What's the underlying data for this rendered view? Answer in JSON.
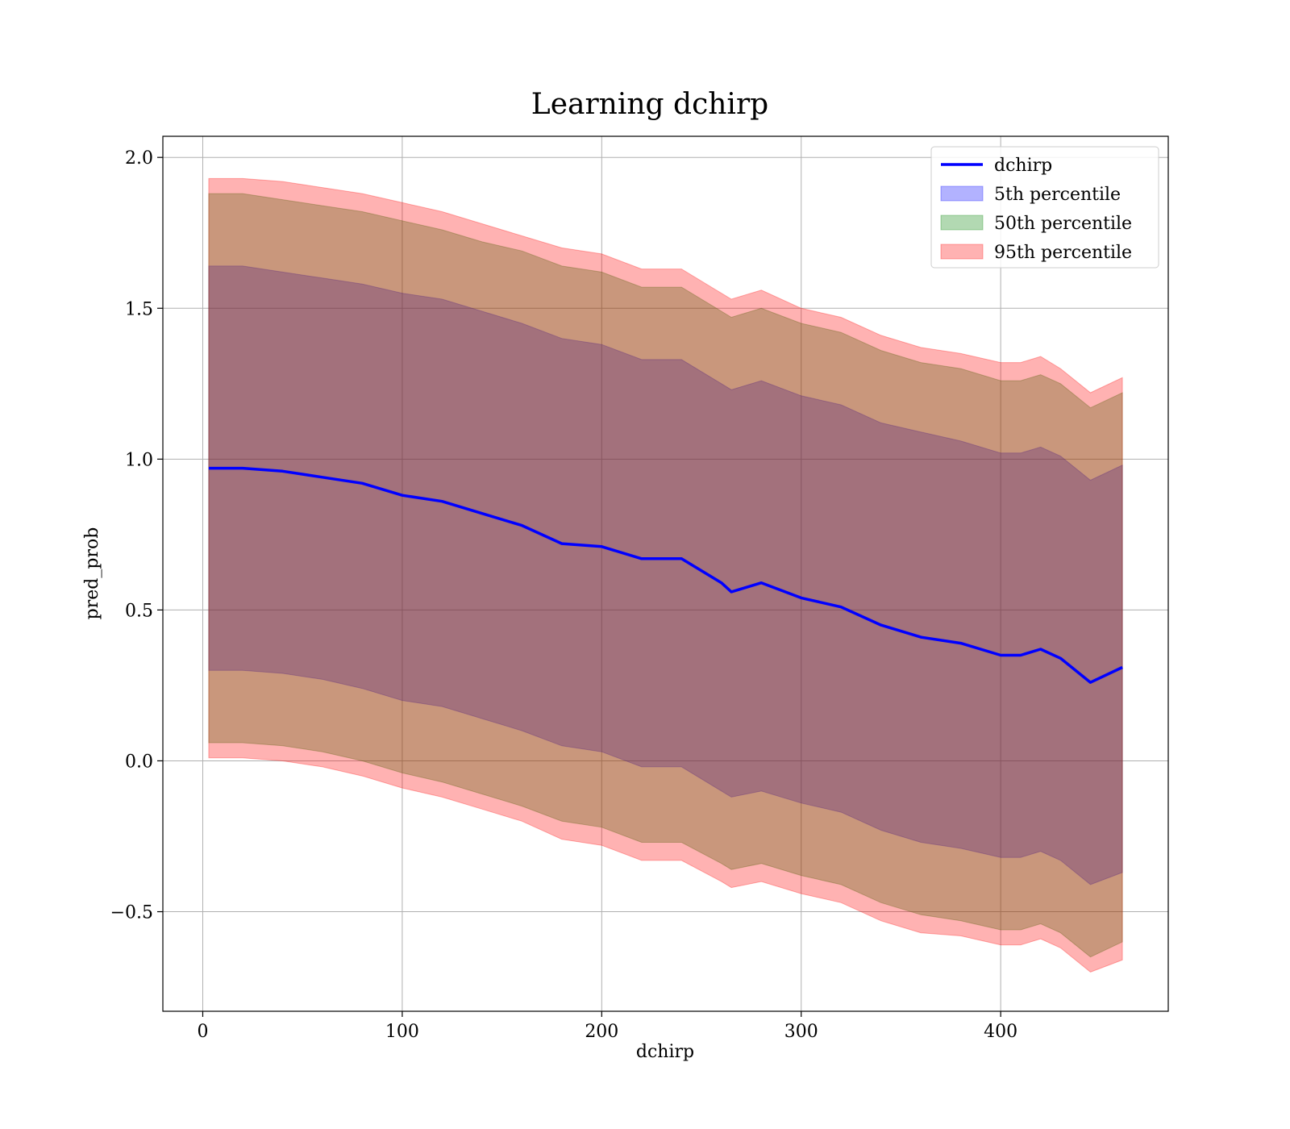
{
  "chart_data": {
    "type": "line",
    "title": "Learning dchirp",
    "xlabel": "dchirp",
    "ylabel": "pred_prob",
    "xlim": [
      -20,
      484
    ],
    "ylim": [
      -0.83,
      2.07
    ],
    "xticks": [
      0,
      100,
      200,
      300,
      400
    ],
    "xtick_labels": [
      "0",
      "100",
      "200",
      "300",
      "400"
    ],
    "yticks": [
      -0.5,
      0.0,
      0.5,
      1.0,
      1.5,
      2.0
    ],
    "ytick_labels": [
      "−0.5",
      "0.0",
      "0.5",
      "1.0",
      "1.5",
      "2.0"
    ],
    "grid": true,
    "legend_position": "top-right",
    "colors": {
      "line": "#0000ff",
      "band_5th": "#0000ff",
      "band_50th": "#008000",
      "band_95th": "#ff0000"
    },
    "legend": [
      {
        "label": "dchirp",
        "kind": "line",
        "color": "#0000ff"
      },
      {
        "label": "5th percentile",
        "kind": "band",
        "color": "#0000ff"
      },
      {
        "label": "50th percentile",
        "kind": "band",
        "color": "#008000"
      },
      {
        "label": "95th percentile",
        "kind": "band",
        "color": "#ff0000"
      }
    ],
    "x": [
      3,
      20,
      40,
      60,
      80,
      100,
      120,
      140,
      160,
      180,
      200,
      220,
      240,
      260,
      265,
      280,
      300,
      320,
      340,
      360,
      380,
      400,
      410,
      420,
      430,
      445,
      461
    ],
    "series": [
      {
        "name": "dchirp",
        "values": [
          0.97,
          0.97,
          0.96,
          0.94,
          0.92,
          0.88,
          0.86,
          0.82,
          0.78,
          0.72,
          0.71,
          0.67,
          0.67,
          0.59,
          0.56,
          0.59,
          0.54,
          0.51,
          0.45,
          0.41,
          0.39,
          0.35,
          0.35,
          0.37,
          0.34,
          0.26,
          0.31
        ]
      },
      {
        "name": "5th percentile",
        "lower": [
          0.3,
          0.3,
          0.29,
          0.27,
          0.24,
          0.2,
          0.18,
          0.14,
          0.1,
          0.05,
          0.03,
          -0.02,
          -0.02,
          -0.1,
          -0.12,
          -0.1,
          -0.14,
          -0.17,
          -0.23,
          -0.27,
          -0.29,
          -0.32,
          -0.32,
          -0.3,
          -0.33,
          -0.41,
          -0.37
        ],
        "upper": [
          1.64,
          1.64,
          1.62,
          1.6,
          1.58,
          1.55,
          1.53,
          1.49,
          1.45,
          1.4,
          1.38,
          1.33,
          1.33,
          1.25,
          1.23,
          1.26,
          1.21,
          1.18,
          1.12,
          1.09,
          1.06,
          1.02,
          1.02,
          1.04,
          1.01,
          0.93,
          0.98
        ]
      },
      {
        "name": "50th percentile",
        "lower": [
          0.06,
          0.06,
          0.05,
          0.03,
          0.0,
          -0.04,
          -0.07,
          -0.11,
          -0.15,
          -0.2,
          -0.22,
          -0.27,
          -0.27,
          -0.34,
          -0.36,
          -0.34,
          -0.38,
          -0.41,
          -0.47,
          -0.51,
          -0.53,
          -0.56,
          -0.56,
          -0.54,
          -0.57,
          -0.65,
          -0.6
        ],
        "upper": [
          1.88,
          1.88,
          1.86,
          1.84,
          1.82,
          1.79,
          1.76,
          1.72,
          1.69,
          1.64,
          1.62,
          1.57,
          1.57,
          1.49,
          1.47,
          1.5,
          1.45,
          1.42,
          1.36,
          1.32,
          1.3,
          1.26,
          1.26,
          1.28,
          1.25,
          1.17,
          1.22
        ]
      },
      {
        "name": "95th percentile",
        "lower": [
          0.01,
          0.01,
          0.0,
          -0.02,
          -0.05,
          -0.09,
          -0.12,
          -0.16,
          -0.2,
          -0.26,
          -0.28,
          -0.33,
          -0.33,
          -0.4,
          -0.42,
          -0.4,
          -0.44,
          -0.47,
          -0.53,
          -0.57,
          -0.58,
          -0.61,
          -0.61,
          -0.59,
          -0.62,
          -0.7,
          -0.66
        ],
        "upper": [
          1.93,
          1.93,
          1.92,
          1.9,
          1.88,
          1.85,
          1.82,
          1.78,
          1.74,
          1.7,
          1.68,
          1.63,
          1.63,
          1.55,
          1.53,
          1.56,
          1.5,
          1.47,
          1.41,
          1.37,
          1.35,
          1.32,
          1.32,
          1.34,
          1.3,
          1.22,
          1.27
        ]
      }
    ]
  }
}
